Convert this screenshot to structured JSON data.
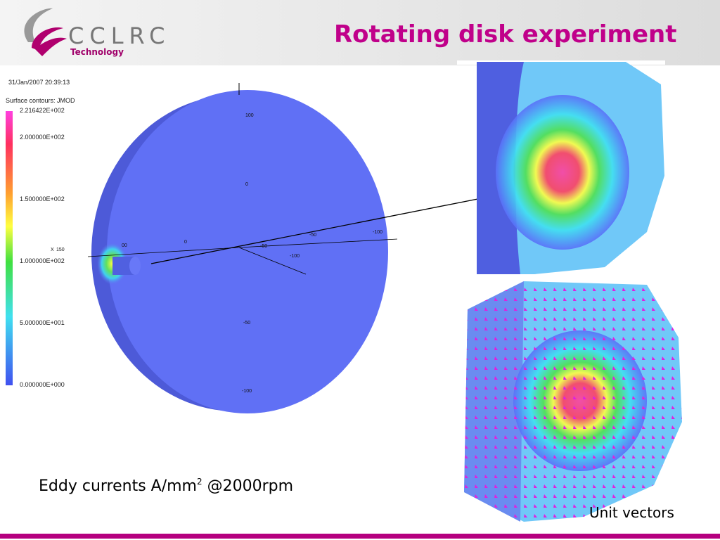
{
  "header": {
    "title": "Rotating disk experiment",
    "logo": {
      "name": "CCLRC",
      "subtitle": "Technology"
    }
  },
  "plot": {
    "timestamp": "31/Jan/2007 20:39:13",
    "legend_title": "Surface contours: JMOD",
    "legend_labels": [
      "2.216422E+002",
      "2.000000E+002",
      "1.500000E+002",
      "1.000000E+002",
      "5.000000E+001",
      "0.000000E+000"
    ],
    "axis_labels": [
      "100",
      "0",
      "0",
      "-50",
      "-100",
      "-50",
      "-100",
      "-100",
      "-50",
      "X",
      "150",
      "00"
    ]
  },
  "captions": {
    "left": {
      "text": "Eddy currents A/mm",
      "superscript": "2",
      "suffix": " @2000rpm"
    },
    "right": "Unit vectors"
  }
}
